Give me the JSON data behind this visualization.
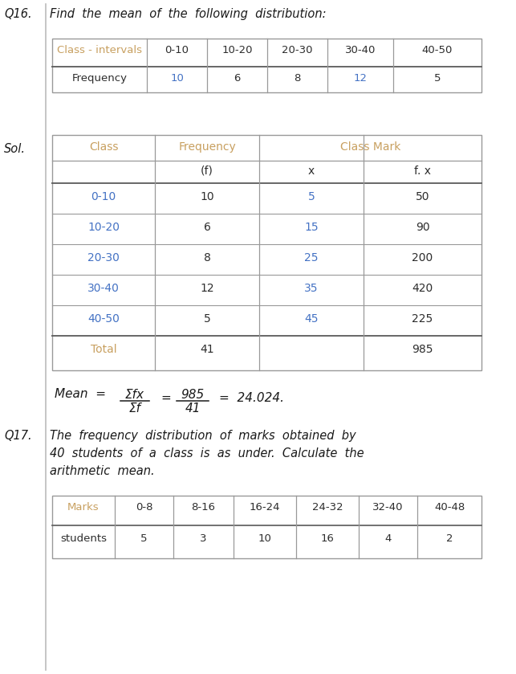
{
  "bg_color": "#ffffff",
  "gold": "#c8a060",
  "blue": "#4472c4",
  "black": "#1a1a1a",
  "dark": "#2d2d2d",
  "line_color": "#999999",
  "line_color2": "#666666",
  "q16_label": "Q16.",
  "q16_question": "Find  the  mean  of  the  following  distribution:",
  "table1_headers": [
    "Class - intervals",
    "0-10",
    "10-20",
    "20-30",
    "30-40",
    "40-50"
  ],
  "table1_row": [
    "Frequency",
    "10",
    "6",
    "8",
    "12",
    "5"
  ],
  "table1_row_colors": [
    1,
    2,
    0,
    0,
    0,
    0
  ],
  "sol_label": "Sol.",
  "table2_col1_header": "Class",
  "table2_col2_header": "Frequency",
  "table2_col3_header": "Class Mark",
  "table2_sub2": "(f)",
  "table2_sub3": "x",
  "table2_sub4": "f. x",
  "table2_rows": [
    [
      "0-10",
      "10",
      "5",
      "50"
    ],
    [
      "10-20",
      "6",
      "15",
      "90"
    ],
    [
      "20-30",
      "8",
      "25",
      "200"
    ],
    [
      "30-40",
      "12",
      "35",
      "420"
    ],
    [
      "40-50",
      "5",
      "45",
      "225"
    ]
  ],
  "table2_total_label": "Total",
  "table2_total_f": "41",
  "table2_total_fx": "985",
  "mean_label": "Mean  =",
  "mean_num": "Σfx",
  "mean_den": "Σf",
  "mean_num2": "985",
  "mean_den2": "41",
  "mean_result": "=  24.024.",
  "q17_label": "Q17.",
  "q17_line1": "The  frequency  distribution  of  marks  obtained  by",
  "q17_line2": "40  students  of  a  class  is  as  under.  Calculate  the",
  "q17_line3": "arithmetic  mean.",
  "table3_headers": [
    "Marks",
    "0-8",
    "8-16",
    "16-24",
    "24-32",
    "32-40",
    "40-48"
  ],
  "table3_row": [
    "students",
    "5",
    "3",
    "10",
    "16",
    "4",
    "2"
  ],
  "table3_val_colors": [
    0,
    0,
    2,
    2,
    0,
    0
  ]
}
